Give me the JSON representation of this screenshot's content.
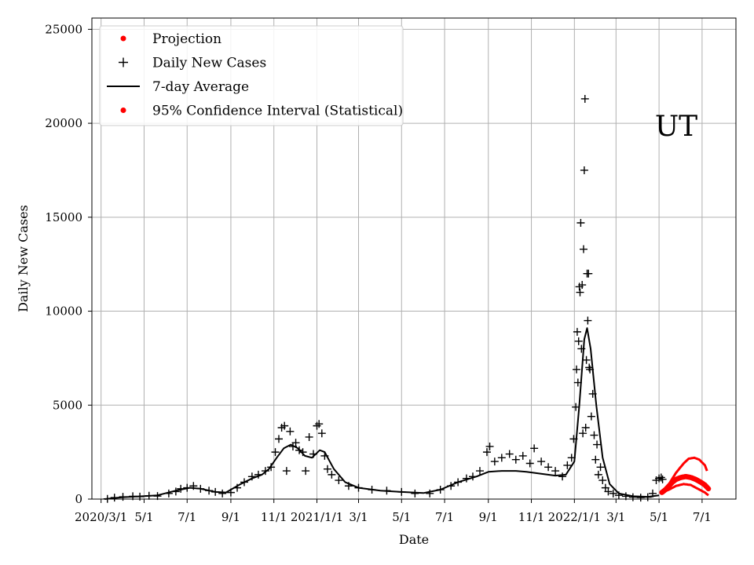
{
  "chart_data": {
    "type": "line",
    "title": "",
    "annotation": "UT",
    "xlabel": "Date",
    "ylabel": "Daily New Cases",
    "ylim": [
      0,
      25600
    ],
    "y_ticks": [
      0,
      5000,
      10000,
      15000,
      20000,
      25000
    ],
    "x_axis": {
      "type": "date",
      "min": "2020-02-17",
      "max": "2022-08-18",
      "ticks": [
        {
          "date": "2020-03-01",
          "label": "2020/3/1"
        },
        {
          "date": "2020-05-01",
          "label": "5/1"
        },
        {
          "date": "2020-07-01",
          "label": "7/1"
        },
        {
          "date": "2020-09-01",
          "label": "9/1"
        },
        {
          "date": "2020-11-01",
          "label": "11/1"
        },
        {
          "date": "2021-01-01",
          "label": "2021/1/1"
        },
        {
          "date": "2021-03-01",
          "label": "3/1"
        },
        {
          "date": "2021-05-01",
          "label": "5/1"
        },
        {
          "date": "2021-07-01",
          "label": "7/1"
        },
        {
          "date": "2021-09-01",
          "label": "9/1"
        },
        {
          "date": "2021-11-01",
          "label": "11/1"
        },
        {
          "date": "2022-01-01",
          "label": "2022/1/1"
        },
        {
          "date": "2022-03-01",
          "label": "3/1"
        },
        {
          "date": "2022-05-01",
          "label": "5/1"
        },
        {
          "date": "2022-07-01",
          "label": "7/1"
        }
      ]
    },
    "grid": true,
    "legend_placement": "top-left",
    "legend": [
      {
        "label": "Projection",
        "marker": "dot",
        "color": "#ff0000"
      },
      {
        "label": "Daily New Cases",
        "marker": "plus",
        "color": "#000000"
      },
      {
        "label": "7-day Average",
        "marker": "line",
        "color": "#000000"
      },
      {
        "label": "95% Confidence Interval (Statistical)",
        "marker": "dot",
        "color": "#ff0000"
      }
    ],
    "series": [
      {
        "name": "7-day Average",
        "color": "#000000",
        "points": [
          [
            "2020-03-06",
            0
          ],
          [
            "2020-04-01",
            100
          ],
          [
            "2020-05-01",
            160
          ],
          [
            "2020-05-20",
            200
          ],
          [
            "2020-06-15",
            450
          ],
          [
            "2020-07-05",
            600
          ],
          [
            "2020-07-20",
            550
          ],
          [
            "2020-08-10",
            380
          ],
          [
            "2020-08-25",
            350
          ],
          [
            "2020-09-15",
            800
          ],
          [
            "2020-10-01",
            1100
          ],
          [
            "2020-10-15",
            1300
          ],
          [
            "2020-10-25",
            1600
          ],
          [
            "2020-11-05",
            2200
          ],
          [
            "2020-11-15",
            2700
          ],
          [
            "2020-11-25",
            2900
          ],
          [
            "2020-12-05",
            2700
          ],
          [
            "2020-12-15",
            2300
          ],
          [
            "2020-12-25",
            2200
          ],
          [
            "2021-01-05",
            2600
          ],
          [
            "2021-01-12",
            2500
          ],
          [
            "2021-01-25",
            1600
          ],
          [
            "2021-02-10",
            900
          ],
          [
            "2021-03-01",
            600
          ],
          [
            "2021-04-01",
            450
          ],
          [
            "2021-05-01",
            380
          ],
          [
            "2021-06-01",
            320
          ],
          [
            "2021-06-25",
            500
          ],
          [
            "2021-07-20",
            900
          ],
          [
            "2021-08-15",
            1200
          ],
          [
            "2021-09-01",
            1450
          ],
          [
            "2021-09-20",
            1500
          ],
          [
            "2021-10-10",
            1500
          ],
          [
            "2021-10-25",
            1450
          ],
          [
            "2021-11-15",
            1350
          ],
          [
            "2021-12-05",
            1250
          ],
          [
            "2021-12-20",
            1300
          ],
          [
            "2022-01-01",
            2000
          ],
          [
            "2022-01-08",
            5000
          ],
          [
            "2022-01-15",
            8500
          ],
          [
            "2022-01-19",
            9100
          ],
          [
            "2022-01-24",
            8000
          ],
          [
            "2022-02-01",
            5000
          ],
          [
            "2022-02-10",
            2200
          ],
          [
            "2022-02-20",
            800
          ],
          [
            "2022-03-05",
            300
          ],
          [
            "2022-03-25",
            150
          ],
          [
            "2022-04-15",
            120
          ],
          [
            "2022-05-01",
            200
          ]
        ]
      },
      {
        "name": "Daily New Cases",
        "color": "#000000",
        "points": [
          [
            "2020-03-10",
            10
          ],
          [
            "2020-03-20",
            80
          ],
          [
            "2020-04-01",
            120
          ],
          [
            "2020-04-15",
            150
          ],
          [
            "2020-04-25",
            130
          ],
          [
            "2020-05-08",
            180
          ],
          [
            "2020-05-20",
            160
          ],
          [
            "2020-06-05",
            300
          ],
          [
            "2020-06-15",
            400
          ],
          [
            "2020-06-22",
            550
          ],
          [
            "2020-07-01",
            600
          ],
          [
            "2020-07-10",
            700
          ],
          [
            "2020-07-20",
            550
          ],
          [
            "2020-08-01",
            450
          ],
          [
            "2020-08-10",
            380
          ],
          [
            "2020-08-20",
            300
          ],
          [
            "2020-09-01",
            350
          ],
          [
            "2020-09-10",
            600
          ],
          [
            "2020-09-20",
            900
          ],
          [
            "2020-10-01",
            1200
          ],
          [
            "2020-10-10",
            1300
          ],
          [
            "2020-10-20",
            1500
          ],
          [
            "2020-10-28",
            1700
          ],
          [
            "2020-11-03",
            2500
          ],
          [
            "2020-11-08",
            3200
          ],
          [
            "2020-11-12",
            3800
          ],
          [
            "2020-11-16",
            3900
          ],
          [
            "2020-11-19",
            1500
          ],
          [
            "2020-11-24",
            3600
          ],
          [
            "2020-11-28",
            2800
          ],
          [
            "2020-12-02",
            3000
          ],
          [
            "2020-12-07",
            2600
          ],
          [
            "2020-12-12",
            2500
          ],
          [
            "2020-12-16",
            1500
          ],
          [
            "2020-12-21",
            3300
          ],
          [
            "2020-12-27",
            2400
          ],
          [
            "2021-01-01",
            3900
          ],
          [
            "2021-01-04",
            4000
          ],
          [
            "2021-01-08",
            3500
          ],
          [
            "2021-01-12",
            2300
          ],
          [
            "2021-01-16",
            1600
          ],
          [
            "2021-01-22",
            1300
          ],
          [
            "2021-02-01",
            1000
          ],
          [
            "2021-02-15",
            700
          ],
          [
            "2021-03-01",
            600
          ],
          [
            "2021-03-20",
            500
          ],
          [
            "2021-04-10",
            450
          ],
          [
            "2021-05-01",
            380
          ],
          [
            "2021-05-20",
            300
          ],
          [
            "2021-06-10",
            300
          ],
          [
            "2021-06-25",
            500
          ],
          [
            "2021-07-10",
            700
          ],
          [
            "2021-07-20",
            900
          ],
          [
            "2021-08-01",
            1100
          ],
          [
            "2021-08-10",
            1200
          ],
          [
            "2021-08-20",
            1500
          ],
          [
            "2021-08-30",
            2500
          ],
          [
            "2021-09-03",
            2800
          ],
          [
            "2021-09-10",
            2000
          ],
          [
            "2021-09-20",
            2200
          ],
          [
            "2021-10-01",
            2400
          ],
          [
            "2021-10-10",
            2100
          ],
          [
            "2021-10-20",
            2300
          ],
          [
            "2021-10-30",
            1900
          ],
          [
            "2021-11-05",
            2700
          ],
          [
            "2021-11-15",
            2000
          ],
          [
            "2021-11-25",
            1700
          ],
          [
            "2021-12-05",
            1500
          ],
          [
            "2021-12-15",
            1200
          ],
          [
            "2021-12-22",
            1800
          ],
          [
            "2021-12-28",
            2200
          ],
          [
            "2021-12-31",
            3200
          ],
          [
            "2022-01-03",
            4900
          ],
          [
            "2022-01-04",
            6900
          ],
          [
            "2022-01-05",
            8900
          ],
          [
            "2022-01-06",
            6200
          ],
          [
            "2022-01-07",
            8400
          ],
          [
            "2022-01-08",
            11300
          ],
          [
            "2022-01-09",
            11000
          ],
          [
            "2022-01-10",
            14700
          ],
          [
            "2022-01-11",
            8000
          ],
          [
            "2022-01-12",
            11400
          ],
          [
            "2022-01-13",
            3500
          ],
          [
            "2022-01-14",
            13300
          ],
          [
            "2022-01-15",
            17500
          ],
          [
            "2022-01-16",
            21300
          ],
          [
            "2022-01-17",
            3800
          ],
          [
            "2022-01-18",
            7400
          ],
          [
            "2022-01-19",
            12000
          ],
          [
            "2022-01-20",
            9500
          ],
          [
            "2022-01-21",
            12000
          ],
          [
            "2022-01-22",
            7000
          ],
          [
            "2022-01-23",
            6900
          ],
          [
            "2022-01-25",
            4400
          ],
          [
            "2022-01-27",
            5600
          ],
          [
            "2022-01-29",
            3400
          ],
          [
            "2022-01-31",
            2100
          ],
          [
            "2022-02-02",
            2900
          ],
          [
            "2022-02-04",
            1300
          ],
          [
            "2022-02-07",
            1700
          ],
          [
            "2022-02-10",
            1000
          ],
          [
            "2022-02-14",
            600
          ],
          [
            "2022-02-18",
            400
          ],
          [
            "2022-02-25",
            300
          ],
          [
            "2022-03-05",
            200
          ],
          [
            "2022-03-15",
            150
          ],
          [
            "2022-03-25",
            100
          ],
          [
            "2022-04-05",
            80
          ],
          [
            "2022-04-15",
            100
          ],
          [
            "2022-04-22",
            300
          ],
          [
            "2022-04-27",
            1000
          ],
          [
            "2022-05-01",
            1100
          ],
          [
            "2022-05-04",
            1150
          ],
          [
            "2022-05-06",
            1050
          ]
        ]
      },
      {
        "name": "Projection",
        "color": "#ff0000",
        "points": [
          [
            "2022-05-05",
            350
          ],
          [
            "2022-05-10",
            500
          ],
          [
            "2022-05-15",
            700
          ],
          [
            "2022-05-20",
            900
          ],
          [
            "2022-05-25",
            1050
          ],
          [
            "2022-06-01",
            1150
          ],
          [
            "2022-06-08",
            1200
          ],
          [
            "2022-06-15",
            1150
          ],
          [
            "2022-06-22",
            1050
          ],
          [
            "2022-06-29",
            900
          ],
          [
            "2022-07-05",
            750
          ],
          [
            "2022-07-10",
            550
          ]
        ]
      },
      {
        "name": "95% Confidence Interval (Statistical)",
        "color": "#ff0000",
        "upper": [
          [
            "2022-05-05",
            350
          ],
          [
            "2022-05-15",
            800
          ],
          [
            "2022-05-25",
            1400
          ],
          [
            "2022-06-05",
            1900
          ],
          [
            "2022-06-12",
            2150
          ],
          [
            "2022-06-20",
            2200
          ],
          [
            "2022-06-27",
            2100
          ],
          [
            "2022-07-05",
            1800
          ],
          [
            "2022-07-08",
            1500
          ]
        ],
        "lower": [
          [
            "2022-05-05",
            350
          ],
          [
            "2022-05-15",
            500
          ],
          [
            "2022-05-25",
            700
          ],
          [
            "2022-06-05",
            800
          ],
          [
            "2022-06-15",
            750
          ],
          [
            "2022-06-25",
            550
          ],
          [
            "2022-07-05",
            350
          ],
          [
            "2022-07-10",
            200
          ]
        ]
      }
    ]
  }
}
